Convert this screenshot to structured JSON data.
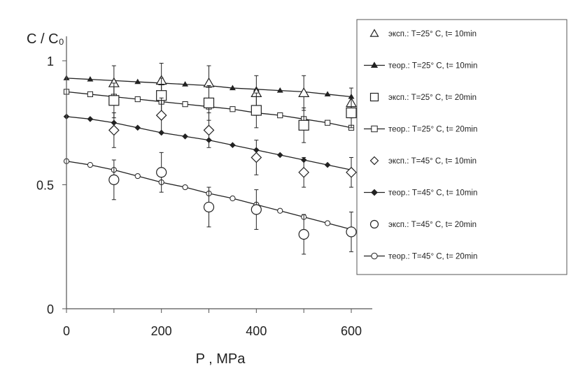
{
  "chart_data": {
    "type": "line",
    "ylabel": "C / C₀",
    "xlabel": "P , MPa",
    "xlim": [
      0,
      640
    ],
    "ylim": [
      0,
      1.1
    ],
    "x_ticks": [
      0,
      200,
      400,
      600
    ],
    "y_ticks": [
      0,
      0.5,
      1
    ],
    "y_tick_labels": [
      "0",
      "0.5",
      "1"
    ],
    "grid": false,
    "legend_position": "right",
    "series": [
      {
        "name": "эксп.: T=25° C, t= 10min",
        "kind": "experimental",
        "marker": "triangle",
        "x": [
          100,
          200,
          300,
          400,
          500,
          600
        ],
        "y": [
          0.91,
          0.92,
          0.91,
          0.87,
          0.87,
          0.83
        ],
        "err": [
          0.07,
          0.07,
          0.07,
          0.07,
          0.07,
          0.06
        ]
      },
      {
        "name": "теор.: T=25° C, t= 10min",
        "kind": "theoretical",
        "marker": "filled-triangle",
        "x": [
          0,
          50,
          100,
          150,
          200,
          250,
          300,
          350,
          400,
          450,
          500,
          550,
          600
        ],
        "y": [
          0.93,
          0.925,
          0.92,
          0.915,
          0.91,
          0.905,
          0.9,
          0.89,
          0.885,
          0.88,
          0.875,
          0.865,
          0.855
        ]
      },
      {
        "name": "эксп.: T=25° C, t= 20min",
        "kind": "experimental",
        "marker": "square",
        "x": [
          100,
          200,
          300,
          400,
          500,
          600
        ],
        "y": [
          0.84,
          0.86,
          0.83,
          0.8,
          0.74,
          0.79
        ],
        "err": [
          0.07,
          0.07,
          0.07,
          0.07,
          0.07,
          0.06
        ]
      },
      {
        "name": "теор.: T=25° C, t= 20min",
        "kind": "theoretical",
        "marker": "square-tick",
        "x": [
          0,
          50,
          100,
          150,
          200,
          250,
          300,
          350,
          400,
          450,
          500,
          550,
          600
        ],
        "y": [
          0.875,
          0.865,
          0.855,
          0.845,
          0.835,
          0.825,
          0.815,
          0.805,
          0.79,
          0.78,
          0.765,
          0.75,
          0.73
        ]
      },
      {
        "name": "эксп.: T=45° C, t= 10min",
        "kind": "experimental",
        "marker": "diamond",
        "x": [
          100,
          200,
          300,
          400,
          500,
          600
        ],
        "y": [
          0.72,
          0.78,
          0.72,
          0.61,
          0.55,
          0.55
        ],
        "err": [
          0.07,
          0.07,
          0.07,
          0.07,
          0.06,
          0.06
        ]
      },
      {
        "name": "теор.: T=45° C, t= 10min",
        "kind": "theoretical",
        "marker": "filled-diamond",
        "x": [
          0,
          50,
          100,
          150,
          200,
          250,
          300,
          350,
          400,
          450,
          500,
          550,
          600
        ],
        "y": [
          0.775,
          0.765,
          0.75,
          0.73,
          0.71,
          0.695,
          0.68,
          0.66,
          0.64,
          0.62,
          0.6,
          0.58,
          0.56
        ]
      },
      {
        "name": "эксп.: T=45° C, t= 20min",
        "kind": "experimental",
        "marker": "circle",
        "x": [
          100,
          200,
          300,
          400,
          500,
          600
        ],
        "y": [
          0.52,
          0.55,
          0.41,
          0.4,
          0.3,
          0.31
        ],
        "err": [
          0.08,
          0.08,
          0.08,
          0.08,
          0.08,
          0.08
        ]
      },
      {
        "name": "теор.: T=45° C, t= 20min",
        "kind": "theoretical",
        "marker": "circle-tick",
        "x": [
          0,
          50,
          100,
          150,
          200,
          250,
          300,
          350,
          400,
          450,
          500,
          550,
          600
        ],
        "y": [
          0.595,
          0.58,
          0.56,
          0.535,
          0.51,
          0.49,
          0.465,
          0.445,
          0.42,
          0.395,
          0.37,
          0.345,
          0.32
        ]
      }
    ]
  }
}
